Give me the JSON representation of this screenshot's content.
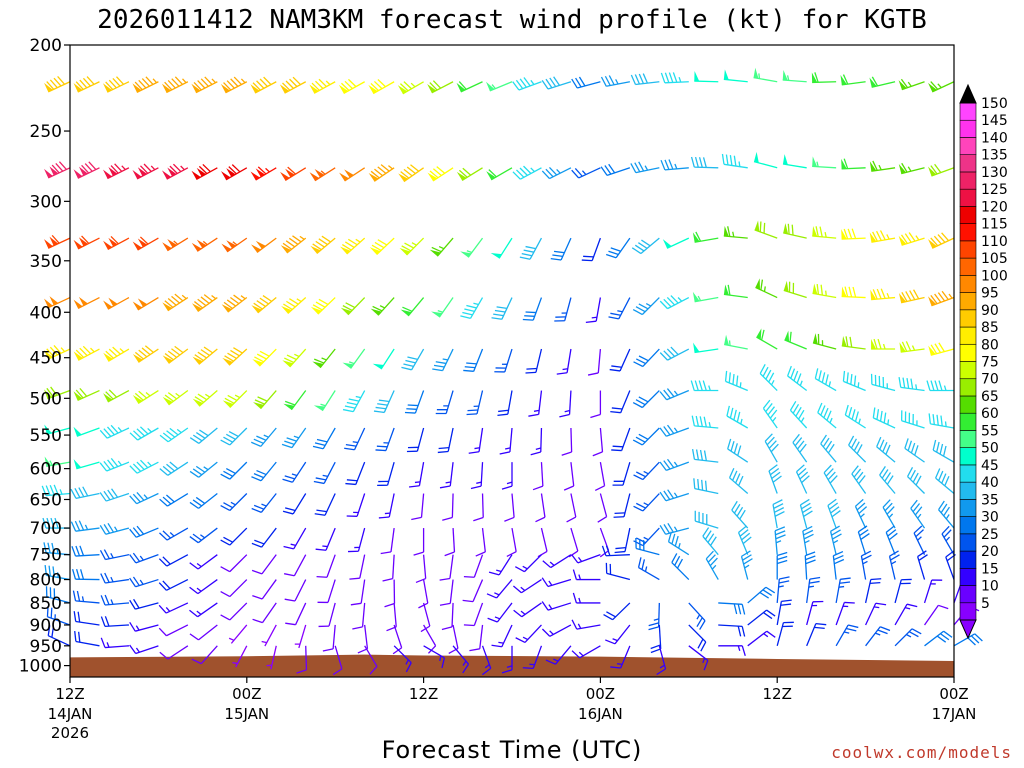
{
  "page": {
    "title": "2026011412 NAM3KM forecast wind profile (kt) for KGTB",
    "credit": "coolwx.com/models"
  },
  "chart_data": {
    "type": "wind-barb-time-height",
    "title": "2026011412 NAM3KM forecast wind profile (kt) for KGTB",
    "xlabel": "Forecast Time (UTC)",
    "ylabel": "",
    "units": "kt",
    "y_axis": {
      "scale": "log-pressure",
      "range_hpa": [
        1030,
        200
      ],
      "inverted": true,
      "ticks": [
        200,
        250,
        300,
        350,
        400,
        450,
        500,
        550,
        600,
        650,
        700,
        750,
        800,
        850,
        900,
        950,
        1000
      ]
    },
    "x_axis": {
      "range_hours": [
        0,
        60
      ],
      "ticks": [
        {
          "hour": 0,
          "label": "12Z",
          "date": "14JAN",
          "year": "2026"
        },
        {
          "hour": 12,
          "label": "00Z",
          "date": "15JAN",
          "year": ""
        },
        {
          "hour": 24,
          "label": "12Z",
          "date": "",
          "year": ""
        },
        {
          "hour": 36,
          "label": "00Z",
          "date": "16JAN",
          "year": ""
        },
        {
          "hour": 48,
          "label": "12Z",
          "date": "",
          "year": ""
        },
        {
          "hour": 60,
          "label": "00Z",
          "date": "17JAN",
          "year": ""
        }
      ]
    },
    "barb_times_hours": [
      0,
      2,
      4,
      6,
      8,
      10,
      12,
      14,
      16,
      18,
      20,
      22,
      24,
      26,
      28,
      30,
      32,
      34,
      36,
      38,
      40,
      42,
      44,
      46,
      48,
      50,
      52,
      54,
      56,
      58,
      60
    ],
    "barb_levels_hpa": [
      220,
      275,
      330,
      385,
      440,
      490,
      540,
      590,
      640,
      700,
      750,
      800,
      850,
      900,
      950
    ],
    "speed_kt_keyframes": [
      {
        "hour": 0,
        "profile": [
          90,
          130,
          110,
          100,
          85,
          70,
          50,
          55,
          45,
          40,
          35,
          35,
          30,
          25,
          20
        ]
      },
      {
        "hour": 12,
        "profile": [
          95,
          120,
          105,
          95,
          90,
          75,
          40,
          30,
          25,
          20,
          10,
          10,
          10,
          5,
          5
        ]
      },
      {
        "hour": 24,
        "profile": [
          75,
          90,
          75,
          60,
          40,
          30,
          20,
          15,
          10,
          10,
          10,
          10,
          10,
          10,
          15
        ]
      },
      {
        "hour": 36,
        "profile": [
          30,
          25,
          20,
          15,
          10,
          10,
          10,
          10,
          10,
          10,
          15,
          15,
          15,
          15,
          15
        ]
      },
      {
        "hour": 44,
        "profile": [
          50,
          40,
          60,
          55,
          50,
          45,
          45,
          40,
          40,
          40,
          40,
          35,
          30,
          20,
          15
        ]
      },
      {
        "hour": 60,
        "profile": [
          65,
          70,
          90,
          95,
          80,
          45,
          45,
          40,
          40,
          35,
          25,
          20,
          15,
          10,
          30
        ]
      }
    ],
    "direction_deg_keyframes": [
      {
        "hour": 0,
        "profile": [
          245,
          245,
          245,
          245,
          245,
          250,
          255,
          260,
          265,
          270,
          275,
          280,
          285,
          290,
          295
        ]
      },
      {
        "hour": 24,
        "profile": [
          240,
          235,
          225,
          220,
          210,
          200,
          195,
          190,
          185,
          180,
          175,
          170,
          165,
          150,
          120
        ]
      },
      {
        "hour": 36,
        "profile": [
          255,
          245,
          200,
          190,
          185,
          180,
          175,
          170,
          165,
          160,
          250,
          270,
          270,
          260,
          240
        ]
      },
      {
        "hour": 48,
        "profile": [
          280,
          285,
          290,
          295,
          300,
          315,
          325,
          330,
          340,
          350,
          355,
          360,
          5,
          10,
          15
        ]
      },
      {
        "hour": 60,
        "profile": [
          245,
          250,
          245,
          250,
          255,
          270,
          280,
          300,
          310,
          320,
          330,
          340,
          20,
          40,
          60
        ]
      }
    ],
    "terrain": [
      {
        "hour": 0,
        "top_hpa": 979
      },
      {
        "hour": 12,
        "top_hpa": 976
      },
      {
        "hour": 20,
        "top_hpa": 972
      },
      {
        "hour": 24,
        "top_hpa": 974
      },
      {
        "hour": 36,
        "top_hpa": 977
      },
      {
        "hour": 48,
        "top_hpa": 983
      },
      {
        "hour": 60,
        "top_hpa": 988
      }
    ],
    "terrain_color": "#a0522d",
    "colorbar": {
      "labels": [
        5,
        10,
        15,
        20,
        25,
        30,
        35,
        40,
        45,
        50,
        55,
        60,
        65,
        70,
        75,
        80,
        85,
        90,
        95,
        100,
        105,
        110,
        115,
        120,
        125,
        130,
        135,
        140,
        145,
        150
      ],
      "colors": [
        "#8800ff",
        "#6a00ff",
        "#3300ff",
        "#0022ee",
        "#0055ee",
        "#0077ee",
        "#1199ee",
        "#22bbee",
        "#22ddee",
        "#00ffcc",
        "#44ff88",
        "#33ee33",
        "#55dd00",
        "#99ee00",
        "#ccff00",
        "#ffff00",
        "#ffee00",
        "#ffcc00",
        "#ffaa00",
        "#ff8800",
        "#ff6600",
        "#ff4400",
        "#ff1100",
        "#ee0000",
        "#ee1144",
        "#ee2266",
        "#ee3388",
        "#ff44bb",
        "#ff33ee",
        "#ff44ff"
      ],
      "top_arrow_color": "#000000",
      "bottom_arrow_color": "#8800ff"
    }
  }
}
